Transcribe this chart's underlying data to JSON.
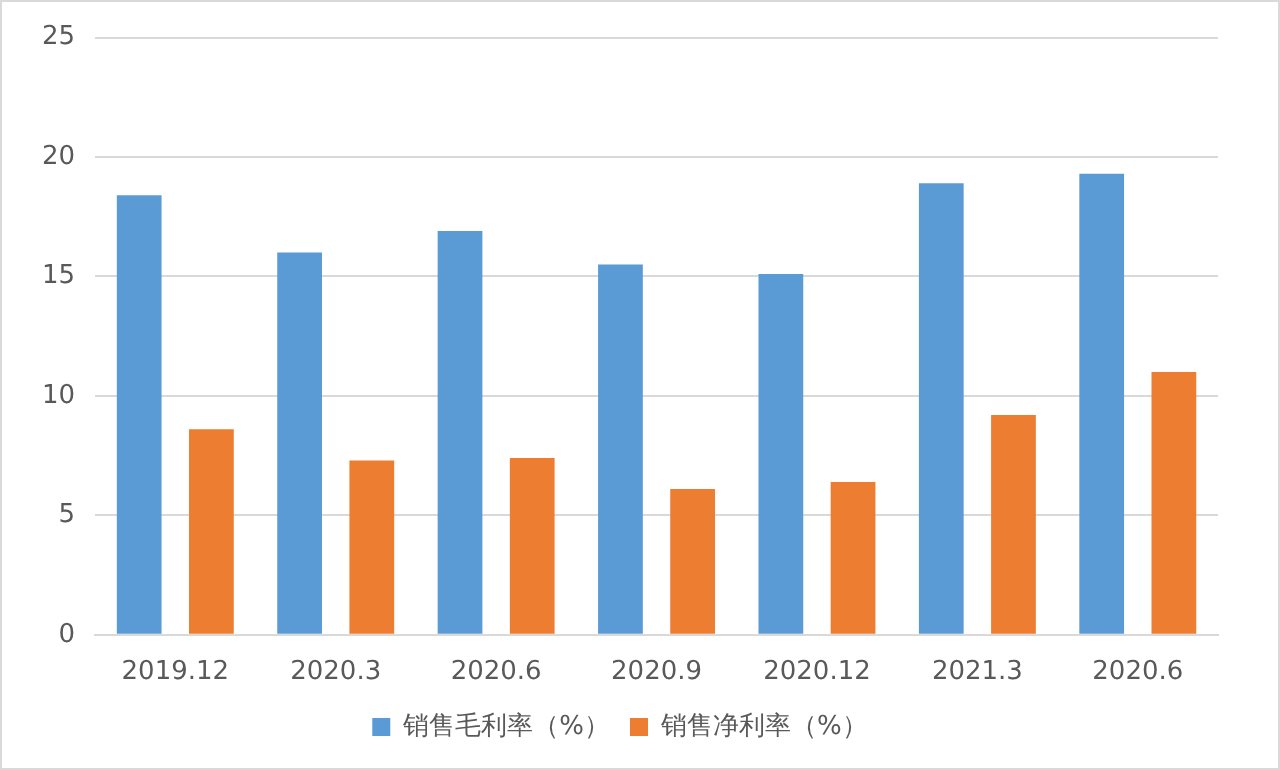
{
  "chart_data": {
    "type": "bar",
    "categories": [
      "2019.12",
      "2020.3",
      "2020.6",
      "2020.9",
      "2020.12",
      "2021.3",
      "2020.6"
    ],
    "series": [
      {
        "name": "销售毛利率（%）",
        "color": "#5b9bd5",
        "values": [
          18.4,
          16.0,
          16.9,
          15.5,
          15.1,
          18.9,
          19.3
        ]
      },
      {
        "name": "销售净利率（%）",
        "color": "#ed7d31",
        "values": [
          8.6,
          7.3,
          7.4,
          6.1,
          6.4,
          9.2,
          11.0
        ]
      }
    ],
    "ylim": [
      0,
      25
    ],
    "yticks": [
      0,
      5,
      10,
      15,
      20,
      25
    ],
    "grid": "y",
    "legend": "bottom"
  }
}
